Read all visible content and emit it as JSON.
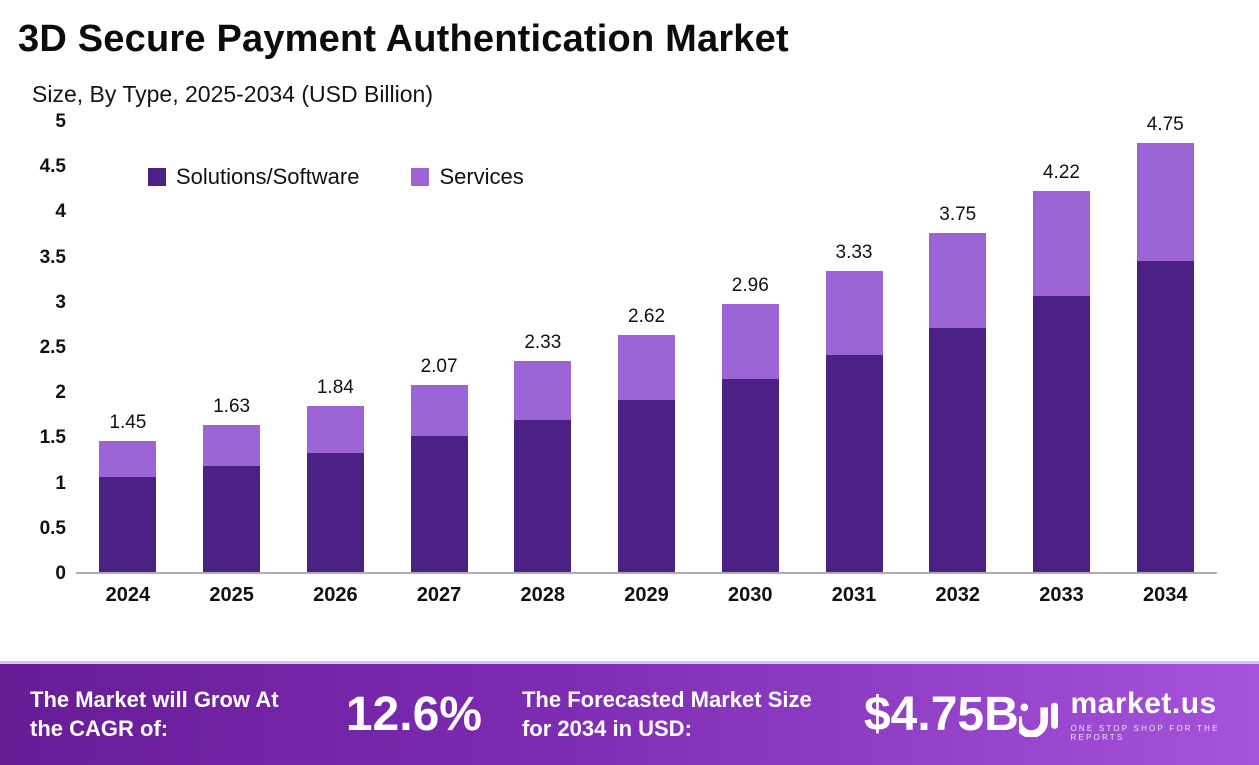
{
  "header": {
    "title": "3D Secure Payment Authentication Market",
    "subtitle": "Size, By Type, 2025-2034 (USD Billion)"
  },
  "chart_data": {
    "type": "bar",
    "stacked": true,
    "title": "3D Secure Payment Authentication Market",
    "subtitle": "Size, By Type, 2025-2034 (USD Billion)",
    "xlabel": "",
    "ylabel": "USD Billion",
    "ylim": [
      0,
      5
    ],
    "ytick_labels": [
      "0",
      "0.5",
      "1",
      "1.5",
      "2",
      "2.5",
      "3",
      "3.5",
      "4",
      "4.5",
      "5"
    ],
    "grid": false,
    "legend_position": "top-left-inside",
    "categories": [
      "2024",
      "2025",
      "2026",
      "2027",
      "2028",
      "2029",
      "2030",
      "2031",
      "2032",
      "2033",
      "2034"
    ],
    "series": [
      {
        "name": "Solutions/Software",
        "color": "#4b2185",
        "values": [
          1.05,
          1.17,
          1.32,
          1.5,
          1.68,
          1.9,
          2.13,
          2.4,
          2.7,
          3.05,
          3.44
        ]
      },
      {
        "name": "Services",
        "color": "#9c64d6",
        "values": [
          0.4,
          0.46,
          0.52,
          0.57,
          0.65,
          0.72,
          0.83,
          0.93,
          1.05,
          1.17,
          1.31
        ]
      }
    ],
    "totals": [
      "1.45",
      "1.63",
      "1.84",
      "2.07",
      "2.33",
      "2.62",
      "2.96",
      "3.33",
      "3.75",
      "4.22",
      "4.75"
    ]
  },
  "footer": {
    "cagr_label": "The Market will Grow At the CAGR of:",
    "cagr_value": "12.6%",
    "forecast_label": "The Forecasted Market Size for 2034 in USD:",
    "forecast_value": "$4.75B",
    "logo_name": "market.us",
    "logo_tagline": "ONE STOP SHOP FOR THE REPORTS"
  }
}
